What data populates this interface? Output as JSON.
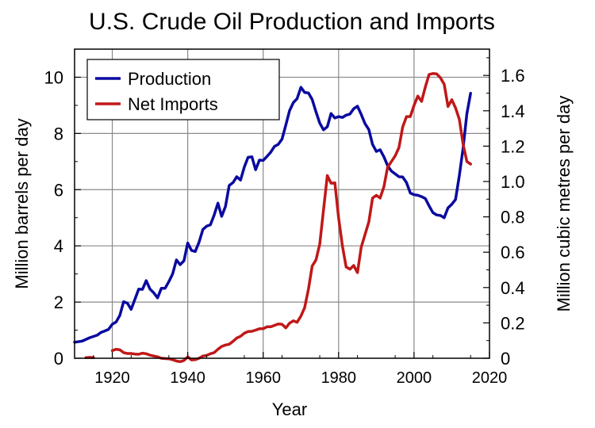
{
  "chart_data": {
    "type": "line",
    "title": "U.S. Crude Oil Production and Imports",
    "xlabel": "Year",
    "ylabel": "Million barrels per day",
    "y2label": "Million cubic metres per day",
    "xlim": [
      1910,
      2020
    ],
    "ylim": [
      0,
      11
    ],
    "y2lim": [
      0,
      1.7488
    ],
    "x_ticks": [
      1920,
      1940,
      1960,
      1980,
      2000,
      2020
    ],
    "y_ticks": [
      0,
      2,
      4,
      6,
      8,
      10
    ],
    "y2_ticks": [
      0,
      0.2,
      0.4,
      0.6,
      0.8,
      1.0,
      1.2,
      1.4,
      1.6
    ],
    "x_tick_labels": [
      "1920",
      "1940",
      "1960",
      "1980",
      "2000",
      "2020"
    ],
    "y_tick_labels": [
      "0",
      "2",
      "4",
      "6",
      "8",
      "10"
    ],
    "y2_tick_labels": [
      "0",
      "0.2",
      "0.4",
      "0.6",
      "0.8",
      "1.0",
      "1.2",
      "1.4",
      "1.6"
    ],
    "grid": "vertical lines at x ticks",
    "legend": "top-left",
    "series": [
      {
        "name": "Production",
        "color": "#0a0aa0",
        "points": [
          [
            1910,
            0.57
          ],
          [
            1912,
            0.61
          ],
          [
            1914,
            0.73
          ],
          [
            1916,
            0.82
          ],
          [
            1917,
            0.92
          ],
          [
            1918,
            0.97
          ],
          [
            1919,
            1.03
          ],
          [
            1920,
            1.21
          ],
          [
            1921,
            1.29
          ],
          [
            1922,
            1.53
          ],
          [
            1923,
            2.01
          ],
          [
            1924,
            1.96
          ],
          [
            1925,
            1.74
          ],
          [
            1926,
            2.1
          ],
          [
            1927,
            2.46
          ],
          [
            1928,
            2.45
          ],
          [
            1929,
            2.76
          ],
          [
            1930,
            2.46
          ],
          [
            1931,
            2.33
          ],
          [
            1932,
            2.15
          ],
          [
            1933,
            2.49
          ],
          [
            1934,
            2.49
          ],
          [
            1935,
            2.73
          ],
          [
            1936,
            3.0
          ],
          [
            1937,
            3.5
          ],
          [
            1938,
            3.33
          ],
          [
            1939,
            3.47
          ],
          [
            1940,
            4.1
          ],
          [
            1941,
            3.84
          ],
          [
            1942,
            3.8
          ],
          [
            1943,
            4.13
          ],
          [
            1944,
            4.58
          ],
          [
            1945,
            4.7
          ],
          [
            1946,
            4.75
          ],
          [
            1947,
            5.09
          ],
          [
            1948,
            5.52
          ],
          [
            1949,
            5.05
          ],
          [
            1950,
            5.4
          ],
          [
            1951,
            6.15
          ],
          [
            1952,
            6.25
          ],
          [
            1953,
            6.46
          ],
          [
            1954,
            6.34
          ],
          [
            1955,
            6.81
          ],
          [
            1956,
            7.15
          ],
          [
            1957,
            7.17
          ],
          [
            1958,
            6.71
          ],
          [
            1959,
            7.05
          ],
          [
            1960,
            7.04
          ],
          [
            1961,
            7.18
          ],
          [
            1962,
            7.33
          ],
          [
            1963,
            7.54
          ],
          [
            1964,
            7.61
          ],
          [
            1965,
            7.8
          ],
          [
            1966,
            8.3
          ],
          [
            1967,
            8.81
          ],
          [
            1968,
            9.1
          ],
          [
            1969,
            9.24
          ],
          [
            1970,
            9.64
          ],
          [
            1971,
            9.46
          ],
          [
            1972,
            9.44
          ],
          [
            1973,
            9.21
          ],
          [
            1974,
            8.77
          ],
          [
            1975,
            8.37
          ],
          [
            1976,
            8.13
          ],
          [
            1977,
            8.24
          ],
          [
            1978,
            8.71
          ],
          [
            1979,
            8.55
          ],
          [
            1980,
            8.6
          ],
          [
            1981,
            8.57
          ],
          [
            1982,
            8.65
          ],
          [
            1983,
            8.69
          ],
          [
            1984,
            8.88
          ],
          [
            1985,
            8.97
          ],
          [
            1986,
            8.68
          ],
          [
            1987,
            8.35
          ],
          [
            1988,
            8.14
          ],
          [
            1989,
            7.61
          ],
          [
            1990,
            7.36
          ],
          [
            1991,
            7.42
          ],
          [
            1992,
            7.17
          ],
          [
            1993,
            6.85
          ],
          [
            1994,
            6.66
          ],
          [
            1995,
            6.56
          ],
          [
            1996,
            6.46
          ],
          [
            1997,
            6.45
          ],
          [
            1998,
            6.25
          ],
          [
            1999,
            5.88
          ],
          [
            2000,
            5.82
          ],
          [
            2001,
            5.8
          ],
          [
            2002,
            5.75
          ],
          [
            2003,
            5.68
          ],
          [
            2004,
            5.42
          ],
          [
            2005,
            5.18
          ],
          [
            2006,
            5.1
          ],
          [
            2007,
            5.08
          ],
          [
            2008,
            5.0
          ],
          [
            2009,
            5.35
          ],
          [
            2010,
            5.48
          ],
          [
            2011,
            5.65
          ],
          [
            2012,
            6.5
          ],
          [
            2013,
            7.47
          ],
          [
            2014,
            8.7
          ],
          [
            2015,
            9.43
          ]
        ]
      },
      {
        "name": "Net Imports",
        "color": "#c01818",
        "points": [
          [
            1913,
            0.02
          ],
          [
            1914,
            0.03
          ],
          [
            1915,
            0.02
          ]
        ],
        "points_2": [
          [
            1920,
            0.27
          ],
          [
            1921,
            0.32
          ],
          [
            1922,
            0.3
          ],
          [
            1923,
            0.2
          ],
          [
            1924,
            0.17
          ],
          [
            1925,
            0.17
          ],
          [
            1926,
            0.15
          ],
          [
            1927,
            0.14
          ],
          [
            1928,
            0.18
          ],
          [
            1929,
            0.16
          ],
          [
            1930,
            0.11
          ],
          [
            1931,
            0.08
          ],
          [
            1932,
            0.05
          ],
          [
            1933,
            0.0
          ],
          [
            1934,
            -0.01
          ],
          [
            1935,
            -0.02
          ],
          [
            1936,
            -0.05
          ],
          [
            1937,
            -0.1
          ],
          [
            1938,
            -0.12
          ],
          [
            1939,
            -0.08
          ],
          [
            1940,
            0.05
          ],
          [
            1941,
            -0.06
          ],
          [
            1942,
            -0.05
          ],
          [
            1943,
            0.0
          ],
          [
            1944,
            0.08
          ],
          [
            1945,
            0.1
          ],
          [
            1946,
            0.16
          ],
          [
            1947,
            0.2
          ],
          [
            1948,
            0.32
          ],
          [
            1949,
            0.42
          ],
          [
            1950,
            0.47
          ],
          [
            1951,
            0.5
          ],
          [
            1952,
            0.6
          ],
          [
            1953,
            0.72
          ],
          [
            1954,
            0.78
          ],
          [
            1955,
            0.89
          ],
          [
            1956,
            0.95
          ],
          [
            1957,
            0.96
          ],
          [
            1958,
            1.0
          ],
          [
            1959,
            1.05
          ],
          [
            1960,
            1.05
          ],
          [
            1961,
            1.12
          ],
          [
            1962,
            1.12
          ],
          [
            1963,
            1.17
          ],
          [
            1964,
            1.22
          ],
          [
            1965,
            1.21
          ],
          [
            1966,
            1.08
          ],
          [
            1967,
            1.25
          ],
          [
            1968,
            1.33
          ],
          [
            1969,
            1.28
          ],
          [
            1970,
            1.5
          ],
          [
            1971,
            1.8
          ],
          [
            1972,
            2.46
          ],
          [
            1973,
            3.28
          ],
          [
            1974,
            3.5
          ],
          [
            1975,
            4.05
          ],
          [
            1976,
            5.28
          ],
          [
            1977,
            6.5
          ],
          [
            1978,
            6.23
          ],
          [
            1979,
            6.24
          ],
          [
            1980,
            5.0
          ],
          [
            1981,
            4.0
          ],
          [
            1982,
            3.25
          ],
          [
            1983,
            3.17
          ],
          [
            1984,
            3.3
          ],
          [
            1985,
            3.05
          ],
          [
            1986,
            3.95
          ],
          [
            1987,
            4.4
          ],
          [
            1988,
            4.85
          ],
          [
            1989,
            5.7
          ],
          [
            1990,
            5.8
          ],
          [
            1991,
            5.7
          ],
          [
            1992,
            6.1
          ],
          [
            1993,
            6.8
          ],
          [
            1994,
            7.0
          ],
          [
            1995,
            7.2
          ],
          [
            1996,
            7.5
          ],
          [
            1997,
            8.23
          ],
          [
            1998,
            8.6
          ],
          [
            1999,
            8.6
          ],
          [
            2000,
            9.0
          ],
          [
            2001,
            9.33
          ],
          [
            2002,
            9.14
          ],
          [
            2003,
            9.66
          ],
          [
            2004,
            10.1
          ],
          [
            2005,
            10.13
          ],
          [
            2006,
            10.12
          ],
          [
            2007,
            9.98
          ],
          [
            2008,
            9.75
          ],
          [
            2009,
            8.96
          ],
          [
            2010,
            9.2
          ],
          [
            2011,
            8.91
          ],
          [
            2012,
            8.5
          ],
          [
            2013,
            7.62
          ],
          [
            2014,
            7.0
          ],
          [
            2015,
            6.91
          ]
        ]
      }
    ]
  }
}
